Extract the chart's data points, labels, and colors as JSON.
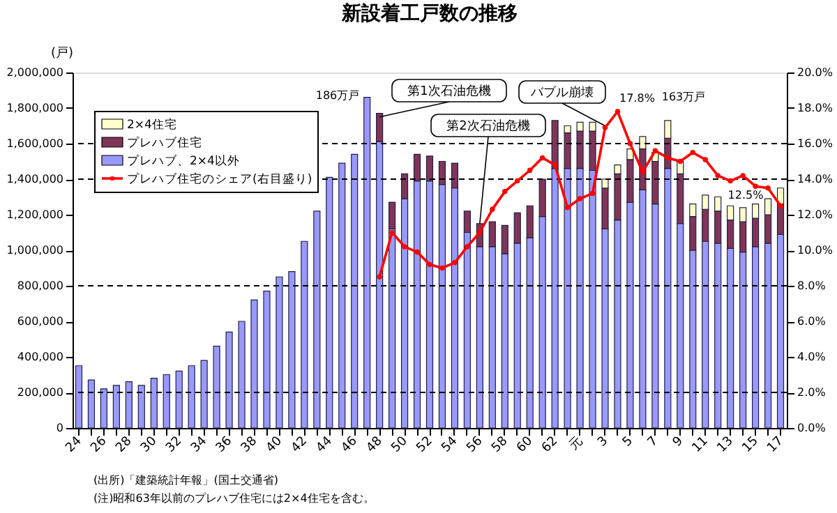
{
  "chart_data": {
    "type": "bar",
    "stacked": true,
    "title": "新設着工戸数の推移",
    "ylabel": "(戸)",
    "categories": [
      "24",
      null,
      "26",
      null,
      "28",
      null,
      "30",
      null,
      "32",
      null,
      "34",
      null,
      "36",
      null,
      "38",
      null,
      "40",
      null,
      "42",
      null,
      "44",
      null,
      "46",
      null,
      "48",
      null,
      "50",
      null,
      "52",
      null,
      "54",
      null,
      "56",
      null,
      "58",
      null,
      "60",
      null,
      "62",
      null,
      "元",
      null,
      "3",
      null,
      "5",
      null,
      "7",
      null,
      "9",
      null,
      "11",
      null,
      "13",
      null,
      "15",
      null,
      "17"
    ],
    "ylim": [
      0,
      2000000
    ],
    "yticks": [
      {
        "value": 0,
        "label": "0"
      },
      {
        "value": 200000,
        "label": "200,000"
      },
      {
        "value": 400000,
        "label": "400,000"
      },
      {
        "value": 600000,
        "label": "600,000"
      },
      {
        "value": 800000,
        "label": "800,000"
      },
      {
        "value": 1000000,
        "label": "1,000,000"
      },
      {
        "value": 1200000,
        "label": "1,200,000"
      },
      {
        "value": 1400000,
        "label": "1,400,000"
      },
      {
        "value": 1600000,
        "label": "1,600,000"
      },
      {
        "value": 1800000,
        "label": "1,800,000"
      },
      {
        "value": 2000000,
        "label": "2,000,000"
      }
    ],
    "y2lim": [
      0,
      20
    ],
    "y2ticks": [
      {
        "value": 0,
        "label": "0.0%"
      },
      {
        "value": 2,
        "label": "2.0%"
      },
      {
        "value": 4,
        "label": "4.0%"
      },
      {
        "value": 6,
        "label": "6.0%"
      },
      {
        "value": 8,
        "label": "8.0%"
      },
      {
        "value": 10,
        "label": "10.0%"
      },
      {
        "value": 12,
        "label": "12.0%"
      },
      {
        "value": 14,
        "label": "14.0%"
      },
      {
        "value": 16,
        "label": "16.0%"
      },
      {
        "value": 18,
        "label": "18.0%"
      },
      {
        "value": 20,
        "label": "20.0%"
      }
    ],
    "legend": "top left",
    "series": [
      {
        "name": "プレハブ、2×4以外",
        "type": "bar",
        "color": "#9999ff",
        "values": [
          350000,
          270000,
          220000,
          240000,
          260000,
          240000,
          280000,
          300000,
          320000,
          350000,
          380000,
          460000,
          540000,
          600000,
          720000,
          770000,
          850000,
          880000,
          1050000,
          1220000,
          1410000,
          1490000,
          1540000,
          1860000,
          1610000,
          1120000,
          1290000,
          1390000,
          1390000,
          1370000,
          1350000,
          1100000,
          1020000,
          1020000,
          980000,
          1040000,
          1070000,
          1190000,
          1460000,
          1460000,
          1460000,
          1450000,
          1120000,
          1170000,
          1270000,
          1340000,
          1260000,
          1460000,
          1150000,
          1000000,
          1050000,
          1040000,
          1010000,
          990000,
          1020000,
          1040000,
          1090000
        ]
      },
      {
        "name": "プレハブ住宅",
        "type": "bar",
        "color": "#7f3558",
        "values": [
          null,
          null,
          null,
          null,
          null,
          null,
          null,
          null,
          null,
          null,
          null,
          null,
          null,
          null,
          null,
          null,
          null,
          null,
          null,
          null,
          null,
          null,
          null,
          null,
          160000,
          150000,
          140000,
          150000,
          140000,
          130000,
          140000,
          120000,
          130000,
          140000,
          160000,
          170000,
          180000,
          210000,
          270000,
          200000,
          210000,
          220000,
          230000,
          260000,
          240000,
          230000,
          240000,
          170000,
          280000,
          190000,
          180000,
          180000,
          160000,
          170000,
          160000,
          160000,
          170000
        ]
      },
      {
        "name": "2×4住宅",
        "type": "bar",
        "color": "#ffffcc",
        "values": [
          null,
          null,
          null,
          null,
          null,
          null,
          null,
          null,
          null,
          null,
          null,
          null,
          null,
          null,
          null,
          null,
          null,
          null,
          null,
          null,
          null,
          null,
          null,
          null,
          null,
          null,
          null,
          null,
          null,
          null,
          null,
          null,
          null,
          null,
          null,
          null,
          null,
          null,
          null,
          40000,
          50000,
          50000,
          50000,
          50000,
          60000,
          70000,
          50000,
          100000,
          70000,
          70000,
          80000,
          80000,
          80000,
          80000,
          80000,
          90000,
          90000
        ]
      },
      {
        "name": "プレハブ住宅のシェア(右目盛り)",
        "type": "line",
        "axis": "y2",
        "color": "#ff0000",
        "marker": "circle",
        "line_style": "solid",
        "values": [
          null,
          null,
          null,
          null,
          null,
          null,
          null,
          null,
          null,
          null,
          null,
          null,
          null,
          null,
          null,
          null,
          null,
          null,
          null,
          null,
          null,
          null,
          null,
          null,
          8.5,
          11.0,
          10.2,
          9.9,
          9.2,
          9.0,
          9.3,
          10.2,
          11.0,
          12.3,
          13.3,
          13.9,
          14.5,
          15.2,
          14.8,
          12.4,
          12.9,
          13.2,
          16.9,
          17.8,
          16.0,
          14.4,
          15.6,
          15.2,
          15.0,
          15.5,
          15.1,
          14.2,
          13.9,
          14.2,
          13.6,
          13.5,
          12.5
        ],
        "value_labels": [
          null,
          null,
          null,
          null,
          null,
          null,
          null,
          null,
          null,
          null,
          null,
          null,
          null,
          null,
          null,
          null,
          null,
          null,
          null,
          null,
          null,
          null,
          null,
          null,
          null,
          null,
          null,
          null,
          null,
          null,
          null,
          null,
          null,
          null,
          null,
          null,
          null,
          null,
          null,
          null,
          null,
          null,
          null,
          "17.8%",
          null,
          null,
          null,
          null,
          null,
          null,
          null,
          null,
          null,
          null,
          null,
          null,
          "12.5%"
        ]
      }
    ],
    "ref_lines": [
      {
        "axis": "y",
        "value": 200000,
        "line_style": "dashed"
      },
      {
        "axis": "y",
        "value": 800000,
        "line_style": "dashed"
      },
      {
        "axis": "y",
        "value": 1400000,
        "line_style": "dashed"
      },
      {
        "axis": "y",
        "value": 1600000,
        "line_style": "dashed"
      }
    ],
    "annotations": [
      {
        "text": "第1次石油危機",
        "x": "48",
        "y": 1750000
      },
      {
        "text": "第2次石油危機",
        "x": "56",
        "y": 1150000
      },
      {
        "text": "バブル崩壊",
        "x": "3",
        "y": 1700000
      },
      "186万戸",
      "163万戸",
      "(出所)「建築統計年報」(国土交通省)",
      "(注)昭和63年以前のプレハブ住宅には2×4住宅を含む。"
    ]
  }
}
